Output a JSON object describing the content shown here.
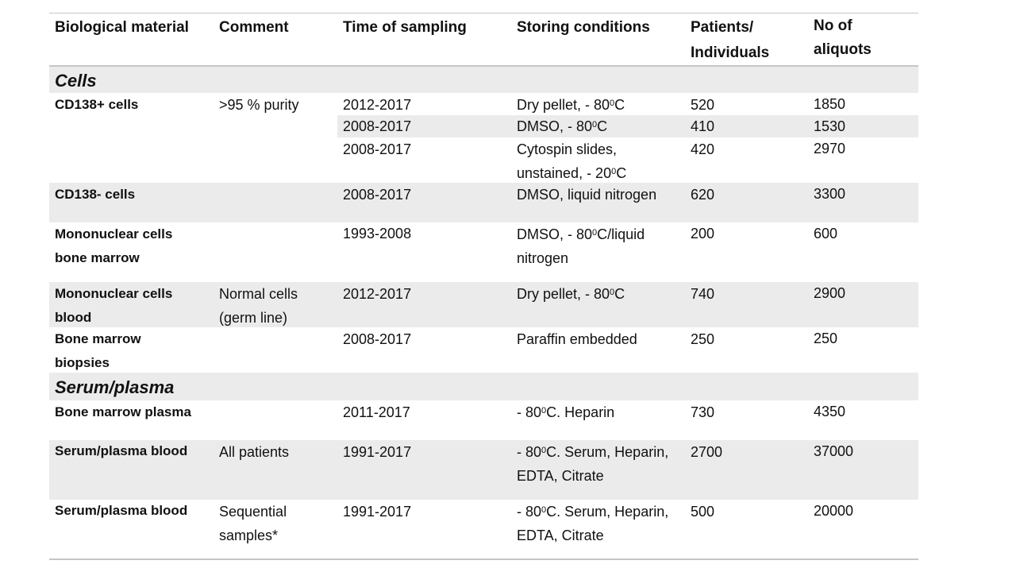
{
  "header": {
    "biological_material": "Biological material",
    "comment": "Comment",
    "time_of_sampling": "Time of sampling",
    "storing_conditions": "Storing conditions",
    "patients_line1": "Patients/",
    "patients_line2": "Individuals",
    "aliquots_line1": "No of",
    "aliquots_line2": "aliquots"
  },
  "sections": {
    "cells": "Cells",
    "serum_plasma": "Serum/plasma"
  },
  "rows": {
    "cd138pos": {
      "material": "CD138+ cells",
      "comment": ">95 % purity",
      "sub": [
        {
          "time": "2012-2017",
          "storing_a": "Dry pellet, - 80",
          "storing_sup": "0",
          "storing_b": "C",
          "patients": "520",
          "aliquots": "1850"
        },
        {
          "time": "2008-2017",
          "storing_a": "DMSO, - 80",
          "storing_sup": "0",
          "storing_b": "C",
          "patients": "410",
          "aliquots": "1530"
        },
        {
          "time": "2008-2017",
          "storing_a": "Cytospin slides,",
          "storing_line2_a": "unstained,  - 20",
          "storing_sup": "0",
          "storing_b": "C",
          "patients": "420",
          "aliquots": "2970"
        }
      ]
    },
    "cd138neg": {
      "material": "CD138- cells",
      "time": "2008-2017",
      "storing": "DMSO, liquid nitrogen",
      "patients": "620",
      "aliquots": "3300"
    },
    "mono_bm": {
      "material_line1": "Mononuclear  cells",
      "material_line2": "bone marrow",
      "time": "1993-2008",
      "storing_a": "DMSO, - 80",
      "storing_sup": "0",
      "storing_b": "C/liquid",
      "storing_line2": "nitrogen",
      "patients": "200",
      "aliquots": "600"
    },
    "mono_blood": {
      "material_line1": "Mononuclear  cells",
      "material_line2": "blood",
      "comment_line1": "Normal cells",
      "comment_line2": "(germ line)",
      "time": "2012-2017",
      "storing_a": "Dry pellet, - 80",
      "storing_sup": "0",
      "storing_b": "C",
      "patients": "740",
      "aliquots": "2900"
    },
    "bm_biopsies": {
      "material_line1": "Bone marrow",
      "material_line2": "biopsies",
      "time": "2008-2017",
      "storing": "Paraffin embedded",
      "patients": "250",
      "aliquots": "250"
    },
    "bm_plasma": {
      "material": "Bone marrow  plasma",
      "time": "2011-2017",
      "storing_a": "- 80",
      "storing_sup": "0",
      "storing_b": "C. Heparin",
      "patients": "730",
      "aliquots": "4350"
    },
    "serum_all": {
      "material": "Serum/plasma  blood",
      "comment": "All patients",
      "time": "1991-2017",
      "storing_a": "- 80",
      "storing_sup": "0",
      "storing_b": "C. Serum, Heparin,",
      "storing_line2": "EDTA, Citrate",
      "patients": "2700",
      "aliquots": "37000"
    },
    "serum_seq": {
      "material": "Serum/plasma  blood",
      "comment_line1": "Sequential",
      "comment_line2": "samples*",
      "time": "1991-2017",
      "storing_a": "- 80",
      "storing_sup": "0",
      "storing_b": "C. Serum, Heparin,",
      "storing_line2": "EDTA, Citrate",
      "patients": "500",
      "aliquots": "20000"
    }
  },
  "colors": {
    "band": "#ebebeb",
    "rule": "#c6c6c6",
    "text": "#111111"
  }
}
